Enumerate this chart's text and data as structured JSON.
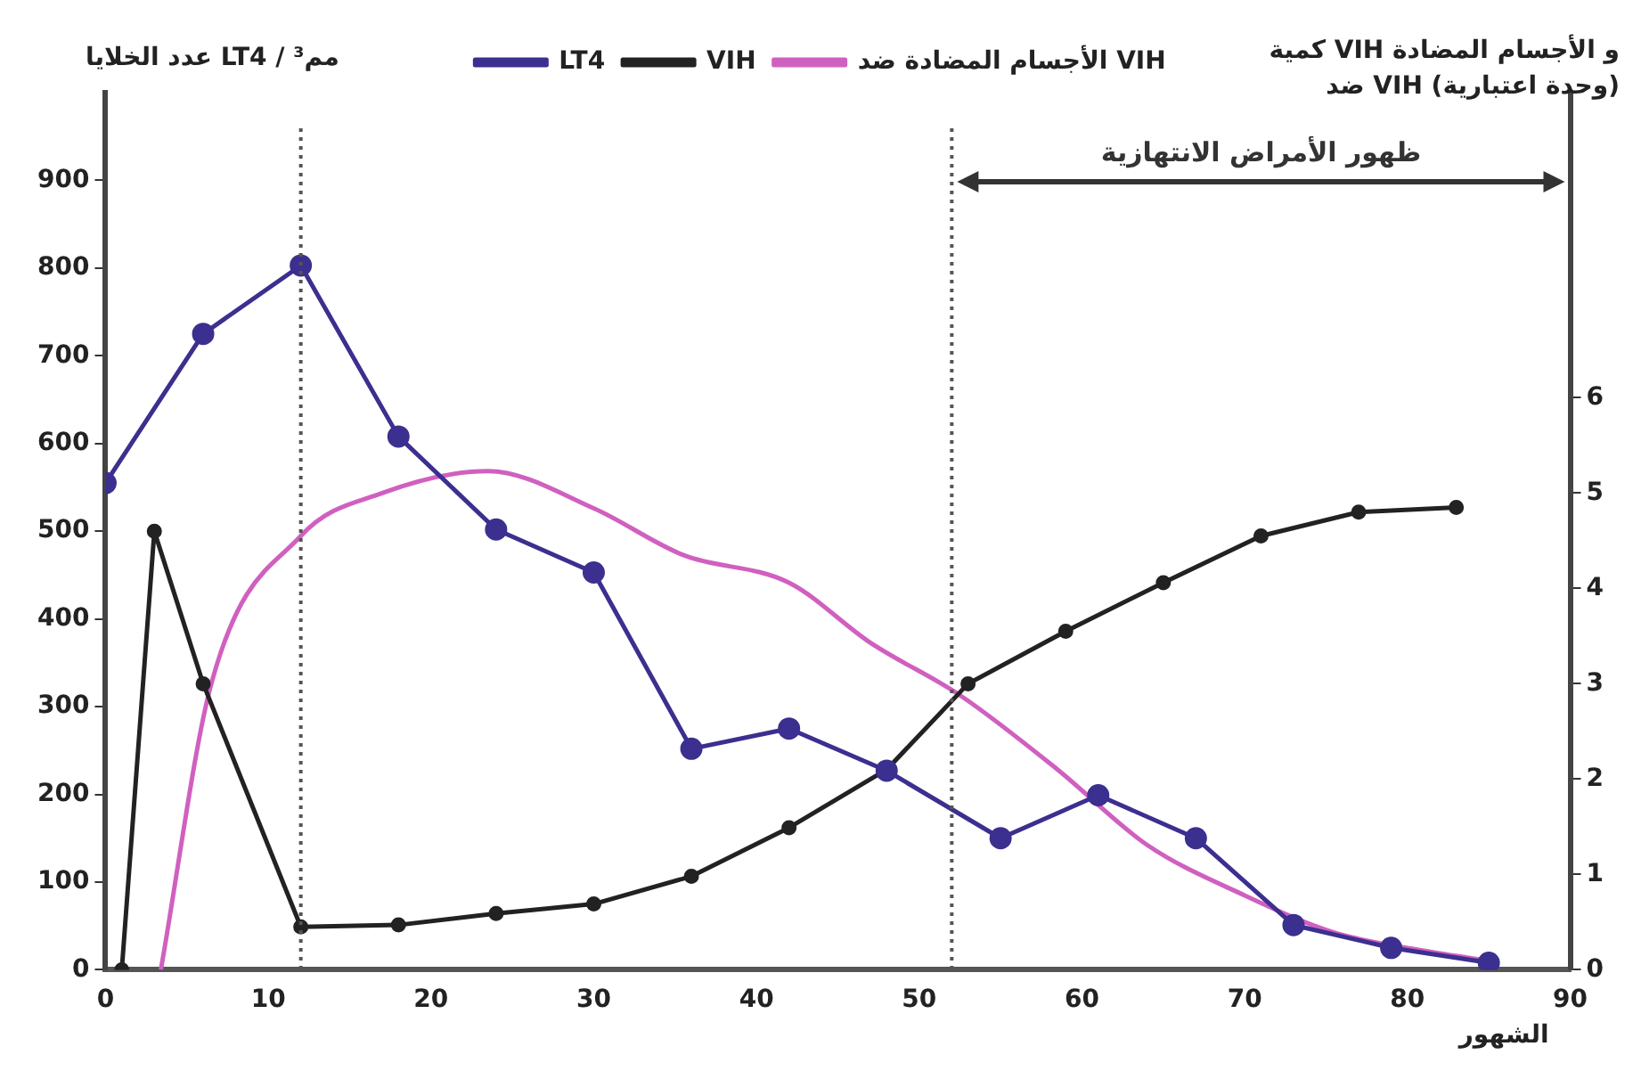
{
  "chart_data": {
    "type": "line",
    "xlabel": "الشهور",
    "ylabel": "عدد الخلايا LT4 / مم³",
    "y2label": "كمية VIH و الأجسام المضادة\nضد VIH (وحدة اعتبارية)",
    "xlim": [
      0,
      90
    ],
    "xticks": [
      0,
      10,
      20,
      30,
      40,
      50,
      60,
      70,
      80,
      90
    ],
    "ylim": [
      0,
      1000
    ],
    "yticks": [
      0,
      100,
      200,
      300,
      400,
      500,
      600,
      700,
      800,
      900
    ],
    "y2lim": [
      0,
      9.2
    ],
    "y2ticks": [
      0,
      1,
      2,
      3,
      4,
      5,
      6
    ],
    "grid": false,
    "legend": "top",
    "line_style": "solid",
    "series": [
      {
        "name": "LT4",
        "color": "#3b2f8f",
        "marker": "circle",
        "x": [
          0,
          6,
          12,
          18,
          24,
          30,
          36,
          42,
          48,
          55,
          61,
          67,
          73,
          79,
          85
        ],
        "values": [
          555,
          725,
          803,
          608,
          502,
          453,
          252,
          275,
          227,
          150,
          199,
          150,
          51,
          25,
          8
        ]
      },
      {
        "name": "VIH",
        "color": "#222222",
        "marker": "circle",
        "axis": "y2",
        "x": [
          1,
          3,
          6,
          12,
          18,
          24,
          30,
          36,
          42,
          48,
          53,
          59,
          65,
          71,
          77,
          83
        ],
        "values": [
          0,
          4.6,
          3.0,
          0.45,
          0.47,
          0.59,
          0.69,
          0.98,
          1.49,
          2.1,
          3.0,
          3.55,
          4.06,
          4.55,
          4.8,
          4.85
        ]
      },
      {
        "name": "الأجسام المضادة ضد VIH",
        "color": "#d060c0",
        "marker": "none",
        "axis": "y2",
        "x": [
          3.4,
          6.5,
          12,
          17,
          23.5,
          30,
          35.5,
          42,
          47,
          52.5,
          58.5,
          64,
          70,
          75.5,
          81,
          85.5
        ],
        "values": [
          0,
          3.0,
          4.55,
          5.0,
          5.23,
          4.84,
          4.35,
          4.06,
          3.43,
          2.88,
          2.1,
          1.31,
          0.78,
          0.39,
          0.2,
          0.08
        ]
      }
    ],
    "ref_lines": [
      {
        "axis": "x",
        "value": 12,
        "line_style": "dotted",
        "color": "#555555"
      },
      {
        "axis": "x",
        "value": 52,
        "line_style": "dotted",
        "color": "#555555"
      }
    ],
    "annotations": [
      "ظهور الأمراض الانتهازية"
    ]
  }
}
